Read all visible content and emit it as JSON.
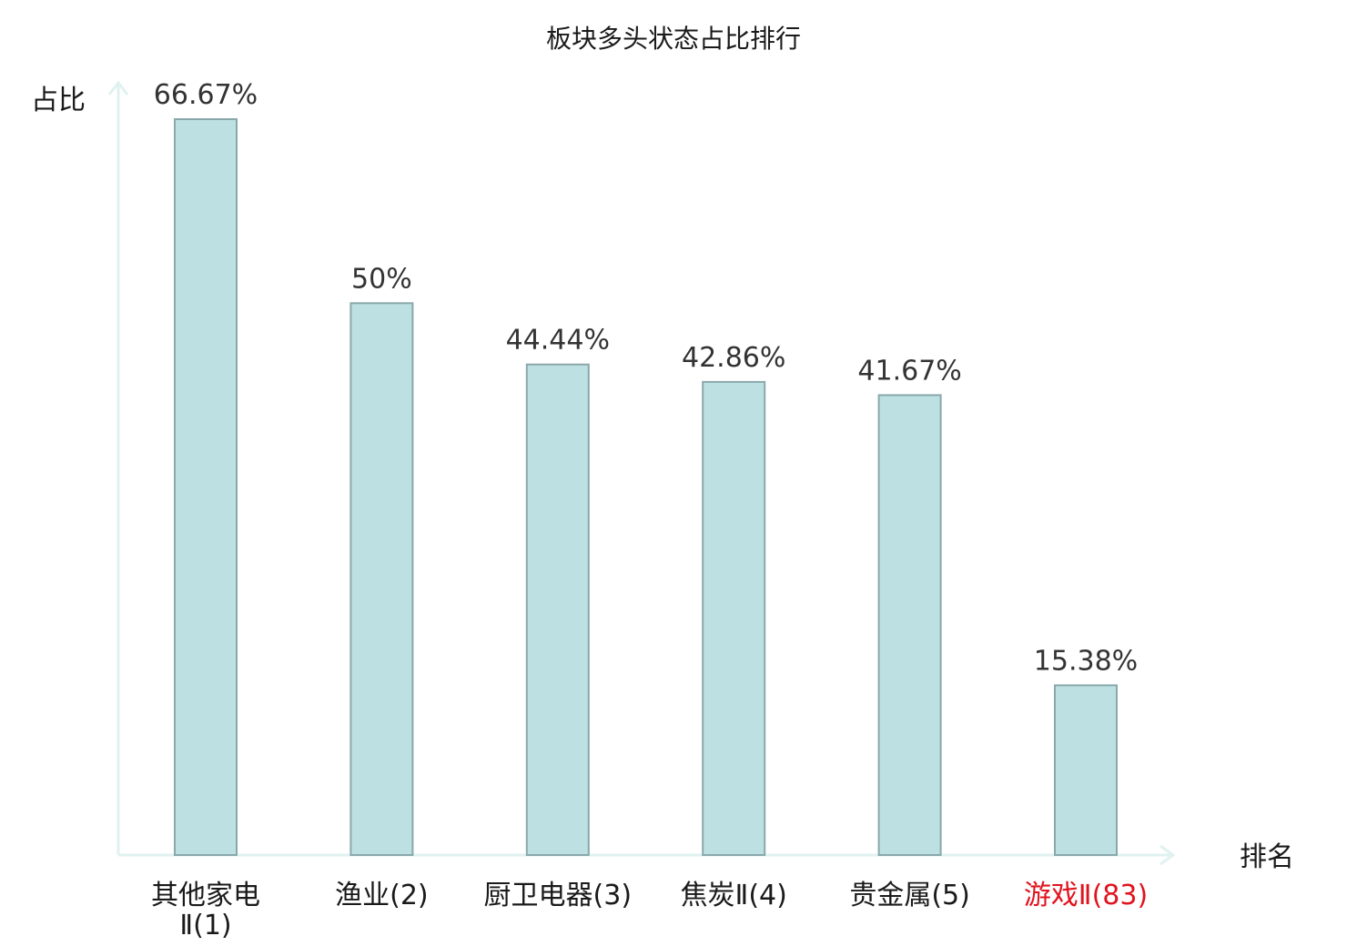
{
  "chart_data": {
    "type": "bar",
    "title": "板块多头状态占比排行",
    "ylabel": "占比",
    "xlabel": "排名",
    "ylim": [
      0,
      70
    ],
    "grid": false,
    "categories": [
      {
        "name": "其他家电Ⅱ",
        "rank": "(1)",
        "lines": [
          "其他家电",
          "Ⅱ(1)"
        ],
        "highlight": false
      },
      {
        "name": "渔业",
        "rank": "(2)",
        "lines": [
          "渔业(2)"
        ],
        "highlight": false
      },
      {
        "name": "厨卫电器",
        "rank": "(3)",
        "lines": [
          "厨卫电器(3)"
        ],
        "highlight": false
      },
      {
        "name": "焦炭Ⅱ",
        "rank": "(4)",
        "lines": [
          "焦炭Ⅱ(4)"
        ],
        "highlight": false
      },
      {
        "name": "贵金属",
        "rank": "(5)",
        "lines": [
          "贵金属(5)"
        ],
        "highlight": false
      },
      {
        "name": "游戏Ⅱ",
        "rank": "(83)",
        "lines": [
          "游戏Ⅱ(83)"
        ],
        "highlight": true
      }
    ],
    "values": [
      66.67,
      50,
      44.44,
      42.86,
      41.67,
      15.38
    ],
    "value_labels": [
      "66.67%",
      "50%",
      "44.44%",
      "42.86%",
      "41.67%",
      "15.38%"
    ],
    "colors": {
      "bar_fill": "#bde0e3",
      "bar_stroke": "#8aa8ab",
      "axis": "#e0f2f0",
      "highlight_text": "#e0141e"
    }
  }
}
